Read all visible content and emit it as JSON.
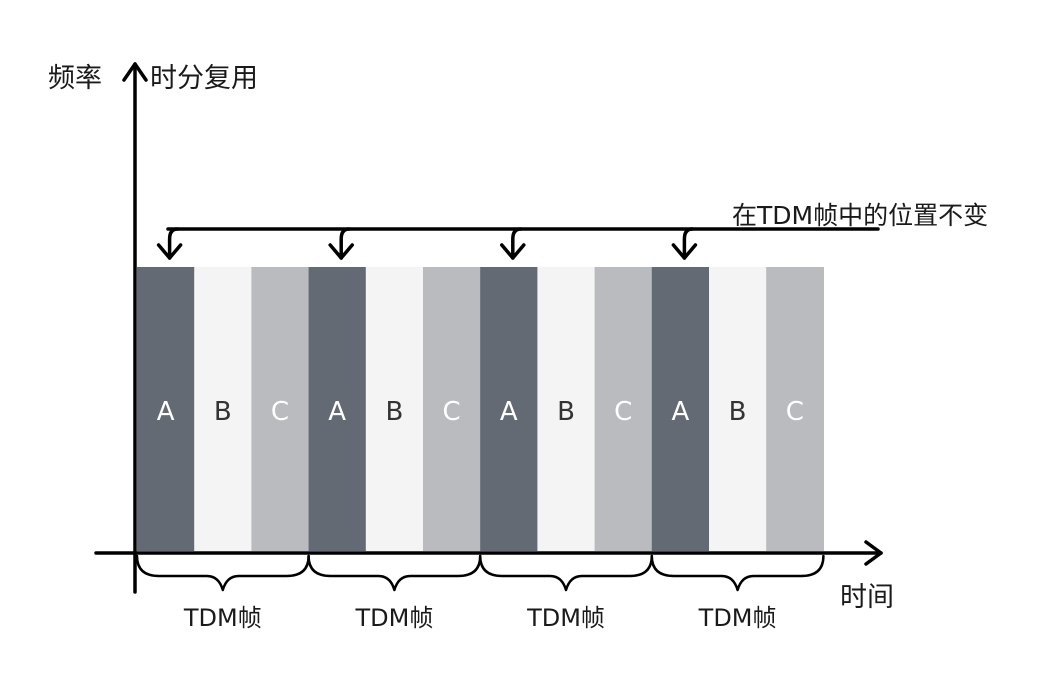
{
  "diagram": {
    "y_axis_label": "频率",
    "title": "时分复用",
    "x_axis_label": "时间",
    "note": "在TDM帧中的位置不变",
    "frame_label": "TDM帧",
    "frames": [
      {
        "slots": [
          {
            "label": "A",
            "color": "#636a73",
            "text_color": "#ffffff"
          },
          {
            "label": "B",
            "color": "#f4f4f4",
            "text_color": "#333333"
          },
          {
            "label": "C",
            "color": "#b9bbbf",
            "text_color": "#ffffff"
          }
        ]
      },
      {
        "slots": [
          {
            "label": "A",
            "color": "#636a73",
            "text_color": "#ffffff"
          },
          {
            "label": "B",
            "color": "#f4f4f4",
            "text_color": "#333333"
          },
          {
            "label": "C",
            "color": "#b9bbbf",
            "text_color": "#ffffff"
          }
        ]
      },
      {
        "slots": [
          {
            "label": "A",
            "color": "#636a73",
            "text_color": "#ffffff"
          },
          {
            "label": "B",
            "color": "#f4f4f4",
            "text_color": "#333333"
          },
          {
            "label": "C",
            "color": "#b9bbbf",
            "text_color": "#ffffff"
          }
        ]
      },
      {
        "slots": [
          {
            "label": "A",
            "color": "#636a73",
            "text_color": "#ffffff"
          },
          {
            "label": "B",
            "color": "#f4f4f4",
            "text_color": "#333333"
          },
          {
            "label": "C",
            "color": "#b9bbbf",
            "text_color": "#ffffff"
          }
        ]
      }
    ]
  }
}
